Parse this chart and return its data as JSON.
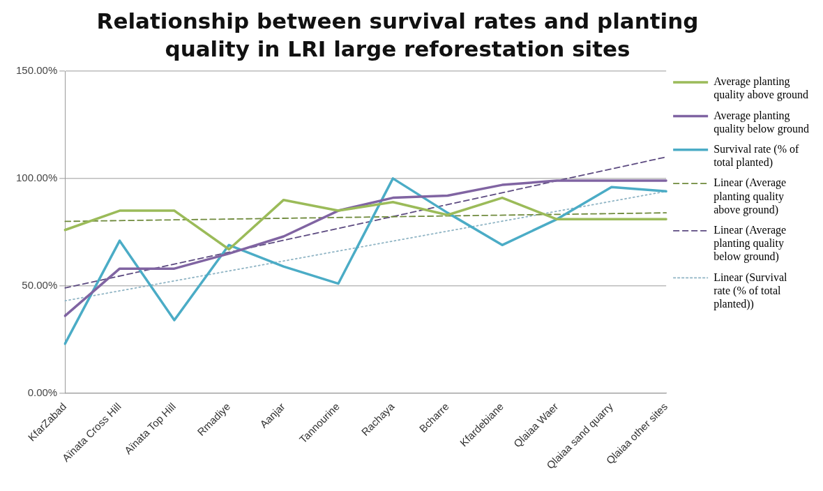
{
  "chart_data": {
    "type": "line",
    "title": "Relationship between survival rates and planting quality in LRI large reforestation sites",
    "categories": [
      "KfarZabad",
      "Aïnata Cross Hill",
      "Aïnata Top Hill",
      "Rmadiye",
      "Aanjar",
      "Tannourine",
      "Rachaya",
      "Bcharre",
      "Kfardebiane",
      "Qlaiaa Waer",
      "Qlaiaa sand quarry",
      "Qlaiaa other sites"
    ],
    "series": [
      {
        "name": "Average planting quality above ground",
        "color": "#9bbb59",
        "values": [
          76,
          85,
          85,
          67,
          90,
          85,
          89,
          83,
          91,
          81,
          81,
          81
        ]
      },
      {
        "name": "Average planting quality below ground",
        "color": "#8064a2",
        "values": [
          36,
          58,
          58,
          65,
          73,
          85,
          91,
          92,
          97,
          99,
          99,
          99
        ]
      },
      {
        "name": "Survival rate (% of total planted)",
        "color": "#4bacc6",
        "values": [
          23,
          71,
          34,
          69,
          59,
          51,
          100,
          84,
          69,
          81,
          96,
          94
        ]
      },
      {
        "name": "Linear (Average planting quality above ground)",
        "color": "#6f8a3c",
        "line_style": "dashed",
        "values": [
          80,
          null,
          null,
          null,
          null,
          null,
          null,
          null,
          null,
          null,
          null,
          84
        ]
      },
      {
        "name": "Linear (Average planting quality below ground)",
        "color": "#5c4a80",
        "line_style": "dashed",
        "values": [
          49,
          null,
          null,
          null,
          null,
          null,
          null,
          null,
          null,
          null,
          null,
          110
        ]
      },
      {
        "name": "Linear (Survival rate (% of total planted))",
        "color": "#8fb4c4",
        "line_style": "dotted",
        "values": [
          43,
          null,
          null,
          null,
          null,
          null,
          null,
          null,
          null,
          null,
          null,
          94
        ]
      }
    ],
    "ylim": [
      0,
      150
    ],
    "yticks": [
      {
        "value": 0,
        "label": "0.00%"
      },
      {
        "value": 50,
        "label": "50.00%"
      },
      {
        "value": 100,
        "label": "100.00%"
      },
      {
        "value": 150,
        "label": "150.00%"
      }
    ],
    "grid": "y",
    "legend": "right",
    "marker": "none",
    "line_style": "solid"
  }
}
